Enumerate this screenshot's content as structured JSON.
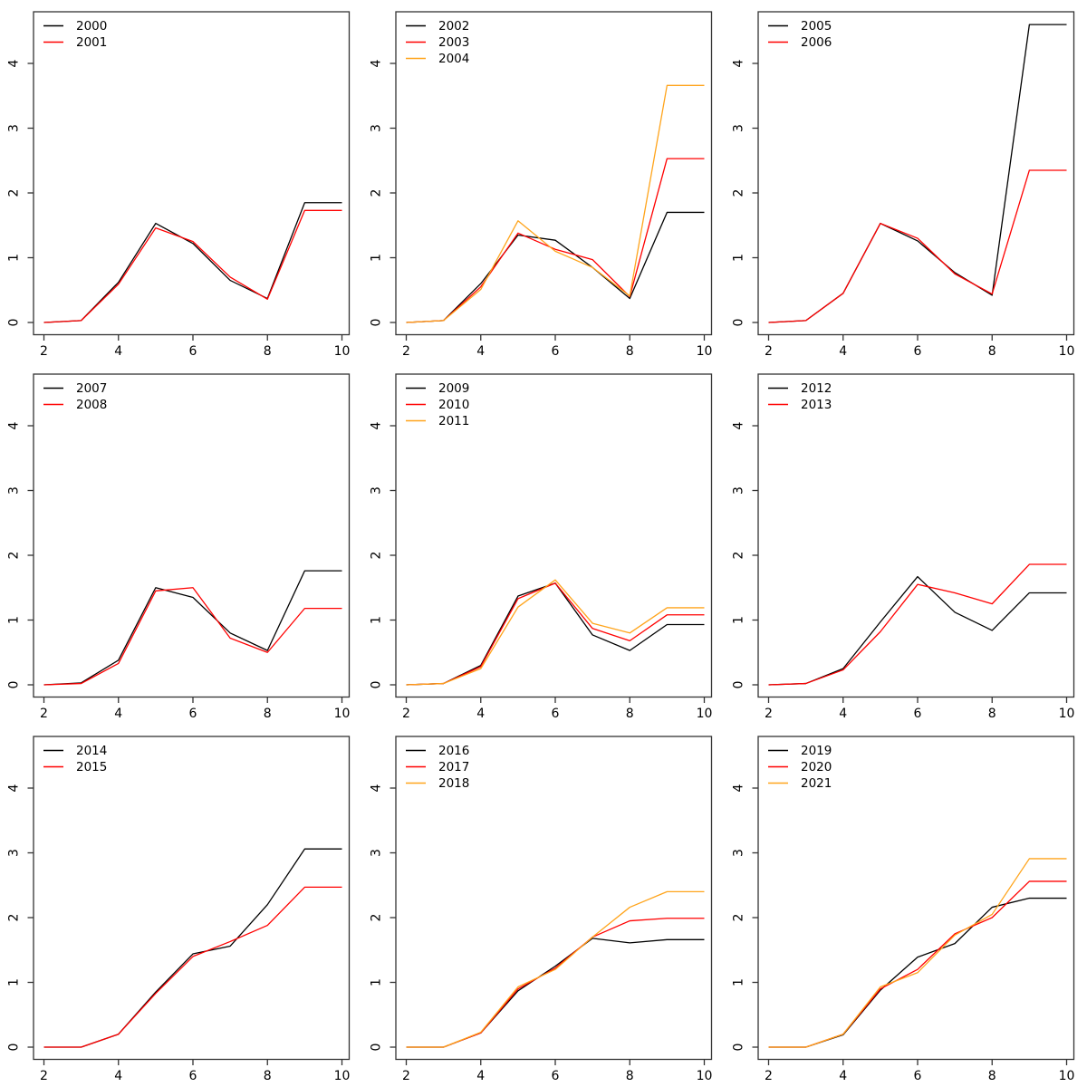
{
  "figure": {
    "background": "#ffffff",
    "axis_color": "#333333",
    "text_color": "#000000",
    "palette": [
      "#000000",
      "#ff0000",
      "#ffa41b"
    ]
  },
  "chart_data": [
    {
      "type": "line",
      "title": "",
      "xlabel": "",
      "ylabel": "",
      "x": [
        2,
        3,
        4,
        5,
        6,
        7,
        8,
        9,
        10
      ],
      "xticks": [
        2,
        4,
        6,
        8,
        10
      ],
      "yticks": [
        0,
        1,
        2,
        3,
        4
      ],
      "xlim": [
        1.68,
        10.32
      ],
      "ylim": [
        -0.19,
        4.8
      ],
      "grid": false,
      "legend_position": "top-left",
      "series": [
        {
          "name": "2000",
          "color": "#000000",
          "values": [
            0,
            0.03,
            0.62,
            1.53,
            1.22,
            0.65,
            0.37,
            1.85,
            1.85
          ]
        },
        {
          "name": "2001",
          "color": "#ff0000",
          "values": [
            0,
            0.03,
            0.59,
            1.46,
            1.25,
            0.7,
            0.36,
            1.73,
            1.73
          ]
        }
      ]
    },
    {
      "type": "line",
      "title": "",
      "xlabel": "",
      "ylabel": "",
      "x": [
        2,
        3,
        4,
        5,
        6,
        7,
        8,
        9,
        10
      ],
      "xticks": [
        2,
        4,
        6,
        8,
        10
      ],
      "yticks": [
        0,
        1,
        2,
        3,
        4
      ],
      "xlim": [
        1.68,
        10.32
      ],
      "ylim": [
        -0.19,
        4.8
      ],
      "grid": false,
      "legend_position": "top-left",
      "series": [
        {
          "name": "2002",
          "color": "#000000",
          "values": [
            0,
            0.03,
            0.6,
            1.35,
            1.27,
            0.85,
            0.37,
            1.7,
            1.7
          ]
        },
        {
          "name": "2003",
          "color": "#ff0000",
          "values": [
            0,
            0.03,
            0.55,
            1.38,
            1.13,
            0.97,
            0.4,
            2.53,
            2.53
          ]
        },
        {
          "name": "2004",
          "color": "#ffa41b",
          "values": [
            0,
            0.03,
            0.51,
            1.57,
            1.1,
            0.85,
            0.41,
            3.66,
            3.66
          ]
        }
      ]
    },
    {
      "type": "line",
      "title": "",
      "xlabel": "",
      "ylabel": "",
      "x": [
        2,
        3,
        4,
        5,
        6,
        7,
        8,
        9,
        10
      ],
      "xticks": [
        2,
        4,
        6,
        8,
        10
      ],
      "yticks": [
        0,
        1,
        2,
        3,
        4
      ],
      "xlim": [
        1.68,
        10.32
      ],
      "ylim": [
        -0.19,
        4.8
      ],
      "grid": false,
      "legend_position": "top-left",
      "series": [
        {
          "name": "2005",
          "color": "#000000",
          "values": [
            0,
            0.03,
            0.45,
            1.53,
            1.26,
            0.77,
            0.42,
            4.6,
            4.6
          ]
        },
        {
          "name": "2006",
          "color": "#ff0000",
          "values": [
            0,
            0.03,
            0.45,
            1.53,
            1.3,
            0.75,
            0.44,
            2.35,
            2.35
          ]
        }
      ]
    },
    {
      "type": "line",
      "title": "",
      "xlabel": "",
      "ylabel": "",
      "x": [
        2,
        3,
        4,
        5,
        6,
        7,
        8,
        9,
        10
      ],
      "xticks": [
        2,
        4,
        6,
        8,
        10
      ],
      "yticks": [
        0,
        1,
        2,
        3,
        4
      ],
      "xlim": [
        1.68,
        10.32
      ],
      "ylim": [
        -0.19,
        4.8
      ],
      "grid": false,
      "legend_position": "top-left",
      "series": [
        {
          "name": "2007",
          "color": "#000000",
          "values": [
            0,
            0.03,
            0.38,
            1.5,
            1.35,
            0.8,
            0.53,
            1.76,
            1.76
          ]
        },
        {
          "name": "2008",
          "color": "#ff0000",
          "values": [
            0,
            0.02,
            0.33,
            1.45,
            1.5,
            0.72,
            0.5,
            1.18,
            1.18
          ]
        }
      ]
    },
    {
      "type": "line",
      "title": "",
      "xlabel": "",
      "ylabel": "",
      "x": [
        2,
        3,
        4,
        5,
        6,
        7,
        8,
        9,
        10
      ],
      "xticks": [
        2,
        4,
        6,
        8,
        10
      ],
      "yticks": [
        0,
        1,
        2,
        3,
        4
      ],
      "xlim": [
        1.68,
        10.32
      ],
      "ylim": [
        -0.19,
        4.8
      ],
      "grid": false,
      "legend_position": "top-left",
      "series": [
        {
          "name": "2009",
          "color": "#000000",
          "values": [
            0,
            0.02,
            0.3,
            1.37,
            1.57,
            0.77,
            0.53,
            0.93,
            0.93
          ]
        },
        {
          "name": "2010",
          "color": "#ff0000",
          "values": [
            0,
            0.02,
            0.28,
            1.33,
            1.57,
            0.87,
            0.68,
            1.08,
            1.08
          ]
        },
        {
          "name": "2011",
          "color": "#ffa41b",
          "values": [
            0,
            0.02,
            0.25,
            1.2,
            1.62,
            0.95,
            0.8,
            1.19,
            1.19
          ]
        }
      ]
    },
    {
      "type": "line",
      "title": "",
      "xlabel": "",
      "ylabel": "",
      "x": [
        2,
        3,
        4,
        5,
        6,
        7,
        8,
        9,
        10
      ],
      "xticks": [
        2,
        4,
        6,
        8,
        10
      ],
      "yticks": [
        0,
        1,
        2,
        3,
        4
      ],
      "xlim": [
        1.68,
        10.32
      ],
      "ylim": [
        -0.19,
        4.8
      ],
      "grid": false,
      "legend_position": "top-left",
      "series": [
        {
          "name": "2012",
          "color": "#000000",
          "values": [
            0,
            0.02,
            0.25,
            0.97,
            1.67,
            1.12,
            0.84,
            1.42,
            1.42
          ]
        },
        {
          "name": "2013",
          "color": "#ff0000",
          "values": [
            0,
            0.02,
            0.23,
            0.82,
            1.55,
            1.42,
            1.25,
            1.86,
            1.86
          ]
        }
      ]
    },
    {
      "type": "line",
      "title": "",
      "xlabel": "",
      "ylabel": "",
      "x": [
        2,
        3,
        4,
        5,
        6,
        7,
        8,
        9,
        10
      ],
      "xticks": [
        2,
        4,
        6,
        8,
        10
      ],
      "yticks": [
        0,
        1,
        2,
        3,
        4
      ],
      "xlim": [
        1.68,
        10.32
      ],
      "ylim": [
        -0.19,
        4.8
      ],
      "grid": false,
      "legend_position": "top-left",
      "series": [
        {
          "name": "2014",
          "color": "#000000",
          "values": [
            0,
            0.0,
            0.2,
            0.85,
            1.44,
            1.56,
            2.2,
            3.06,
            3.06
          ]
        },
        {
          "name": "2015",
          "color": "#ff0000",
          "values": [
            0,
            0.0,
            0.2,
            0.83,
            1.4,
            1.63,
            1.88,
            2.47,
            2.47
          ]
        }
      ]
    },
    {
      "type": "line",
      "title": "",
      "xlabel": "",
      "ylabel": "",
      "x": [
        2,
        3,
        4,
        5,
        6,
        7,
        8,
        9,
        10
      ],
      "xticks": [
        2,
        4,
        6,
        8,
        10
      ],
      "yticks": [
        0,
        1,
        2,
        3,
        4
      ],
      "xlim": [
        1.68,
        10.32
      ],
      "ylim": [
        -0.19,
        4.8
      ],
      "grid": false,
      "legend_position": "top-left",
      "series": [
        {
          "name": "2016",
          "color": "#000000",
          "values": [
            0,
            0.0,
            0.22,
            0.87,
            1.25,
            1.68,
            1.61,
            1.66,
            1.66
          ]
        },
        {
          "name": "2017",
          "color": "#ff0000",
          "values": [
            0,
            0.0,
            0.22,
            0.9,
            1.22,
            1.7,
            1.95,
            1.99,
            1.99
          ]
        },
        {
          "name": "2018",
          "color": "#ffa41b",
          "values": [
            0,
            0.0,
            0.23,
            0.93,
            1.2,
            1.7,
            2.16,
            2.4,
            2.4
          ]
        }
      ]
    },
    {
      "type": "line",
      "title": "",
      "xlabel": "",
      "ylabel": "",
      "x": [
        2,
        3,
        4,
        5,
        6,
        7,
        8,
        9,
        10
      ],
      "xticks": [
        2,
        4,
        6,
        8,
        10
      ],
      "yticks": [
        0,
        1,
        2,
        3,
        4
      ],
      "xlim": [
        1.68,
        10.32
      ],
      "ylim": [
        -0.19,
        4.8
      ],
      "grid": false,
      "legend_position": "top-left",
      "series": [
        {
          "name": "2019",
          "color": "#000000",
          "values": [
            0,
            0.0,
            0.19,
            0.88,
            1.39,
            1.6,
            2.16,
            2.3,
            2.3
          ]
        },
        {
          "name": "2020",
          "color": "#ff0000",
          "values": [
            0,
            0.0,
            0.2,
            0.9,
            1.2,
            1.75,
            2.0,
            2.56,
            2.56
          ]
        },
        {
          "name": "2021",
          "color": "#ffa41b",
          "values": [
            0,
            0.0,
            0.2,
            0.93,
            1.15,
            1.73,
            2.05,
            2.91,
            2.91
          ]
        }
      ]
    }
  ]
}
